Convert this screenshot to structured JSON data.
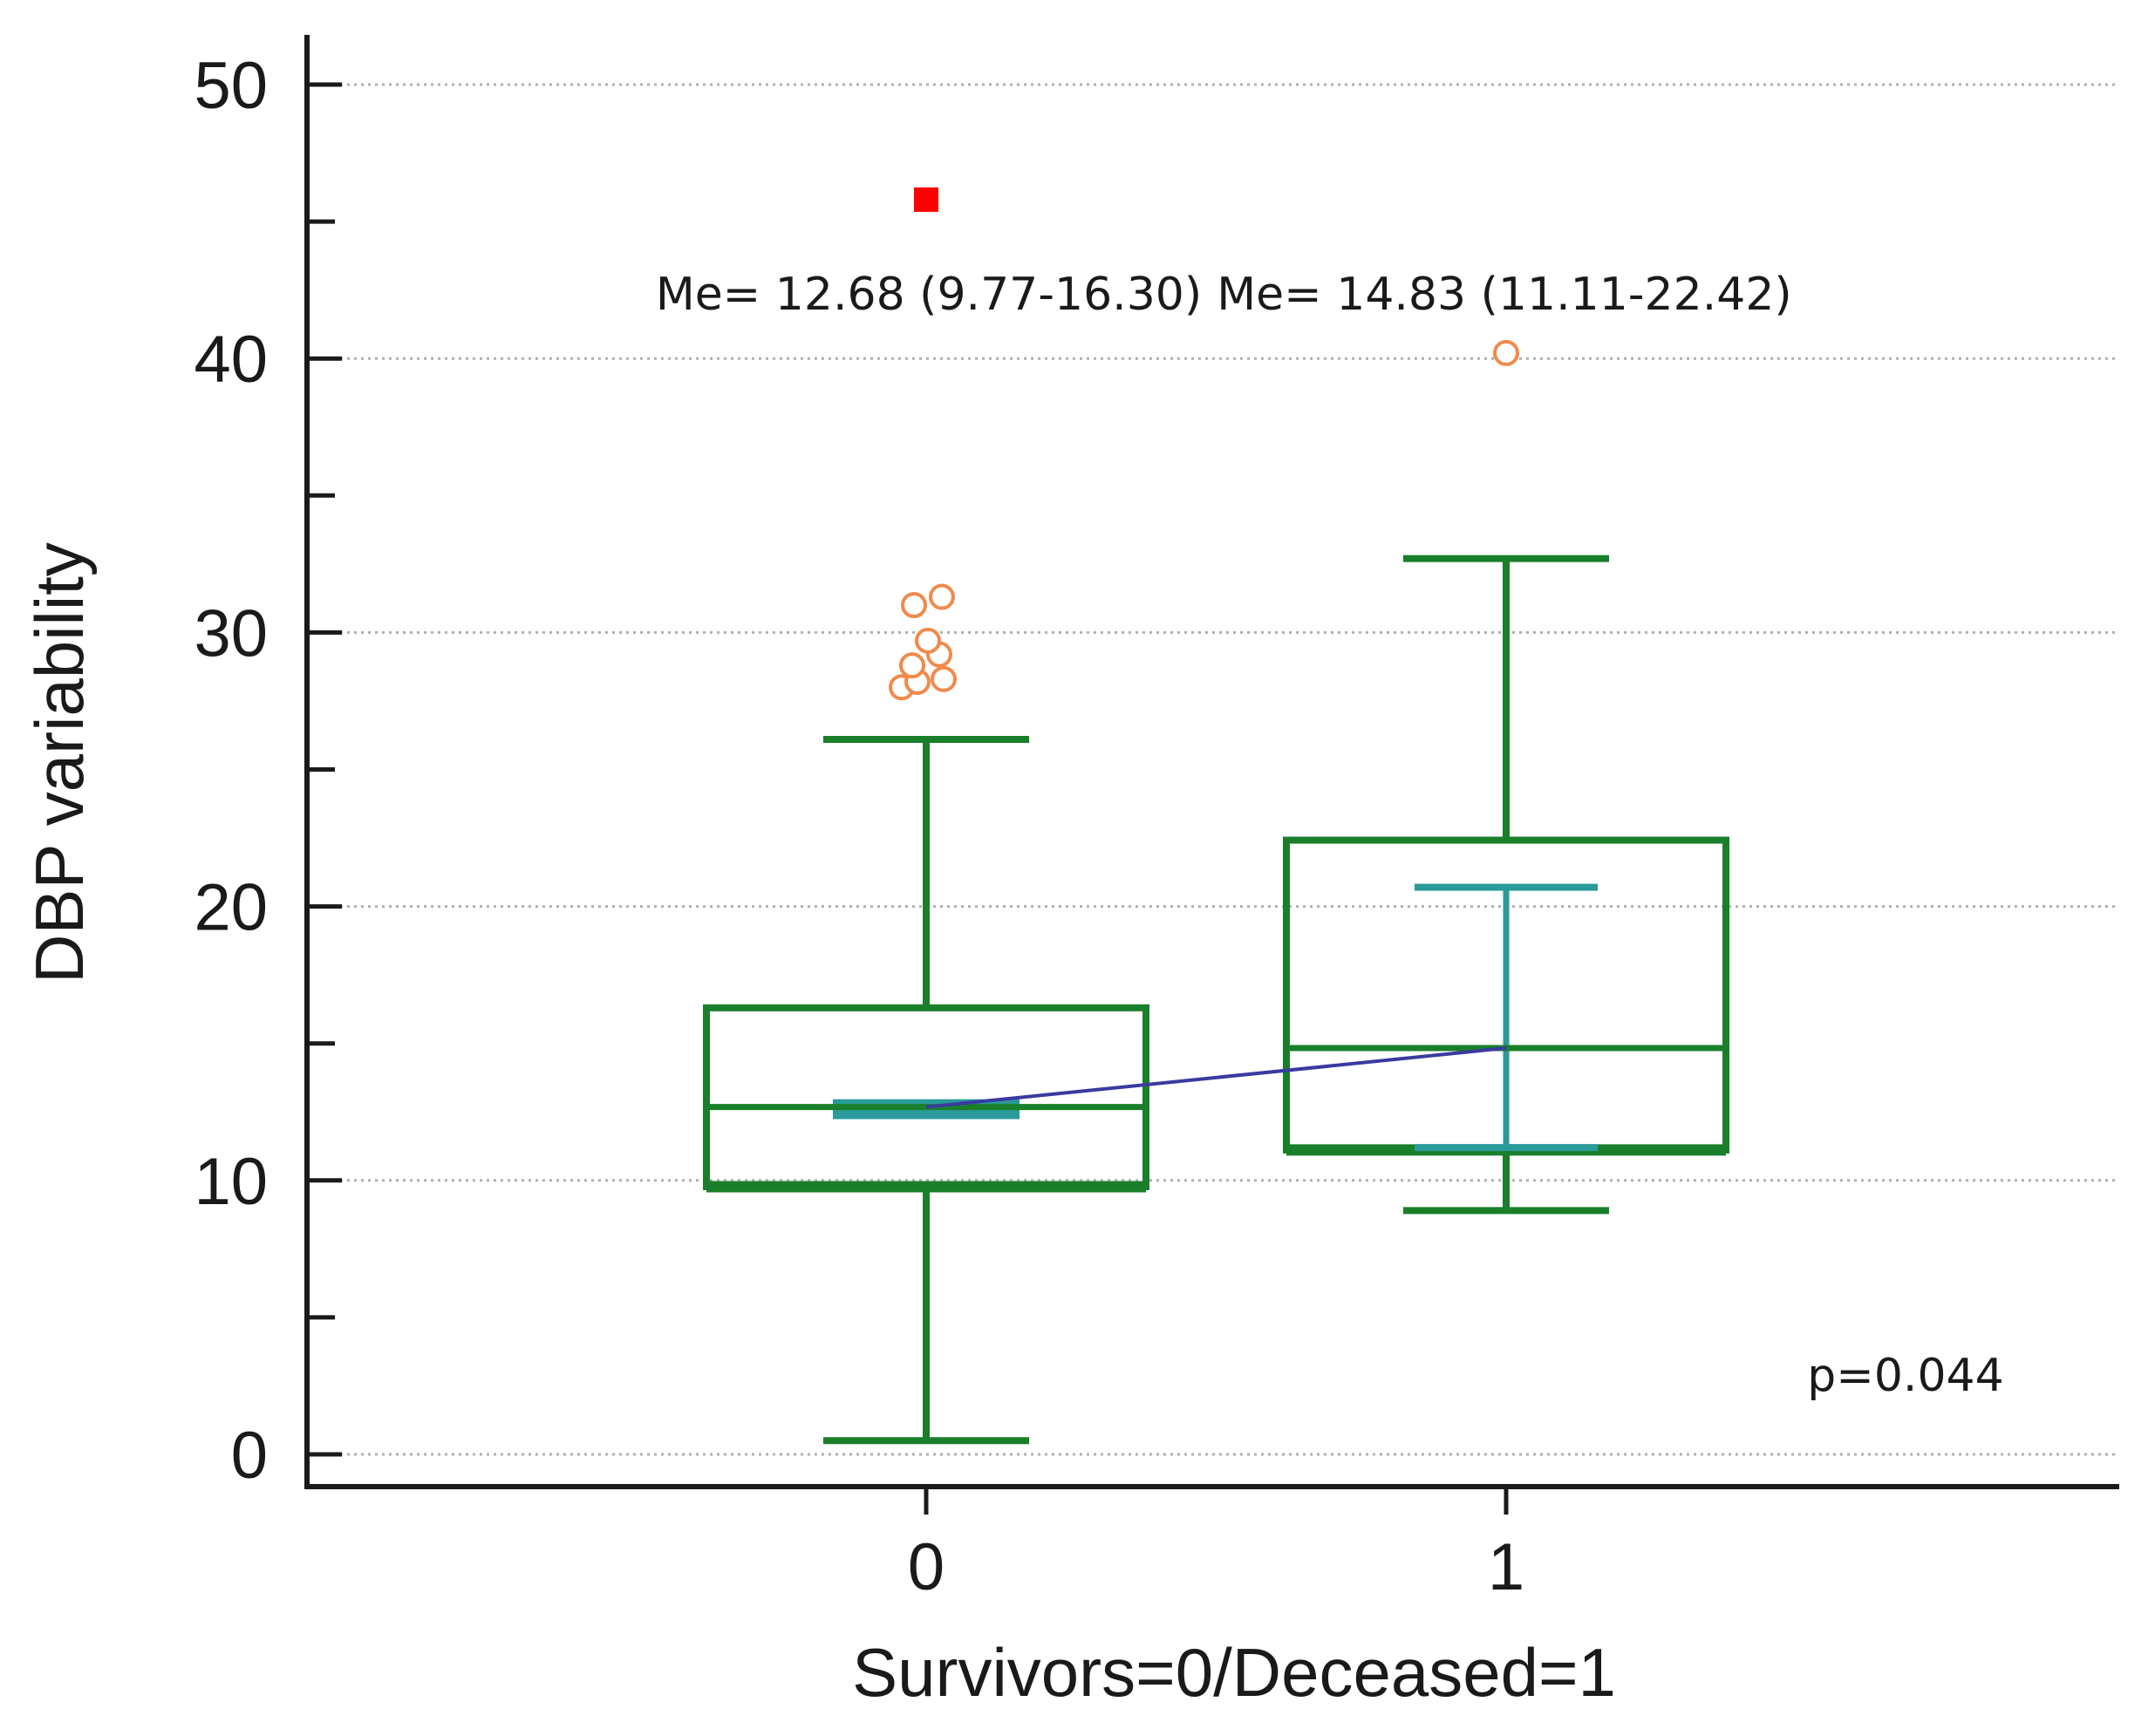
{
  "chart_data": {
    "type": "box",
    "title": "",
    "xlabel": "Survivors=0/Deceased=1",
    "ylabel": "DBP variability",
    "ylim": [
      -1,
      51
    ],
    "yticks": [
      0,
      10,
      20,
      30,
      40,
      50
    ],
    "grid": "horizontal-dotted",
    "categories": [
      "0",
      "1"
    ],
    "boxes": [
      {
        "category": "0",
        "whisker_low": 0.5,
        "q1": 9.77,
        "median": 12.68,
        "q3": 16.3,
        "whisker_high": 26.1,
        "median_ci": [
          12.3,
          12.9
        ],
        "outliers": [
          28.0,
          28.3,
          28.2,
          28.8,
          29.2,
          29.7,
          31.0,
          31.3
        ],
        "far_outliers": [
          45.8
        ],
        "annotation": "Me= 12.68 (9.77-16.30)"
      },
      {
        "category": "1",
        "whisker_low": 8.9,
        "q1": 11.11,
        "median": 14.83,
        "q3": 22.42,
        "whisker_high": 32.7,
        "median_ci": [
          11.2,
          20.7
        ],
        "outliers": [
          40.2
        ],
        "far_outliers": [],
        "annotation": "Me= 14.83 (11.11-22.42)"
      }
    ],
    "median_connector": [
      12.68,
      14.83
    ],
    "p_value_label": "p=0.044",
    "colors": {
      "box": "#1a7f2a",
      "ci": "#2a9a9a",
      "outlier": "#f08a4b",
      "far_outlier": "#ff0000",
      "connector": "#3a3aa0",
      "grid": "#b0b0b0",
      "axis": "#1a1a1a"
    }
  }
}
